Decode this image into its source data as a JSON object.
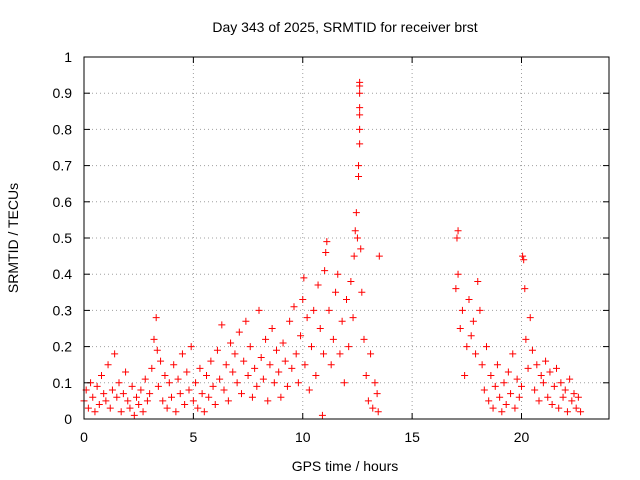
{
  "chart_data": {
    "type": "scatter",
    "title": "Day 343 of 2025, SRMTID for receiver brst",
    "xlabel": "GPS time / hours",
    "ylabel": "SRMTID / TECUs",
    "xlim": [
      0,
      24
    ],
    "ylim": [
      0,
      1
    ],
    "xticks": [
      0,
      5,
      10,
      15,
      20
    ],
    "xtick_labels": [
      "0",
      "5",
      "10",
      "15",
      "20"
    ],
    "yticks": [
      0,
      0.1,
      0.2,
      0.3,
      0.4,
      0.5,
      0.6,
      0.7,
      0.8,
      0.9,
      1
    ],
    "ytick_labels": [
      "0",
      "0.1",
      "0.2",
      "0.3",
      "0.4",
      "0.5",
      "0.6",
      "0.7",
      "0.8",
      "0.9",
      "1"
    ],
    "grid": true,
    "marker": "+",
    "color": "#ff0000",
    "series": [
      {
        "name": "SRMTID",
        "points": [
          [
            0.0,
            0.05
          ],
          [
            0.1,
            0.08
          ],
          [
            0.2,
            0.03
          ],
          [
            0.3,
            0.1
          ],
          [
            0.4,
            0.06
          ],
          [
            0.5,
            0.02
          ],
          [
            0.6,
            0.09
          ],
          [
            0.7,
            0.04
          ],
          [
            0.8,
            0.12
          ],
          [
            0.9,
            0.07
          ],
          [
            1.0,
            0.05
          ],
          [
            1.1,
            0.15
          ],
          [
            1.2,
            0.03
          ],
          [
            1.3,
            0.08
          ],
          [
            1.4,
            0.18
          ],
          [
            1.5,
            0.06
          ],
          [
            1.6,
            0.1
          ],
          [
            1.7,
            0.02
          ],
          [
            1.8,
            0.07
          ],
          [
            1.9,
            0.13
          ],
          [
            2.0,
            0.05
          ],
          [
            2.1,
            0.03
          ],
          [
            2.2,
            0.09
          ],
          [
            2.3,
            0.01
          ],
          [
            2.4,
            0.06
          ],
          [
            2.5,
            0.04
          ],
          [
            2.6,
            0.08
          ],
          [
            2.7,
            0.02
          ],
          [
            2.8,
            0.11
          ],
          [
            2.9,
            0.05
          ],
          [
            3.0,
            0.07
          ],
          [
            3.1,
            0.14
          ],
          [
            3.2,
            0.22
          ],
          [
            3.3,
            0.28
          ],
          [
            3.35,
            0.19
          ],
          [
            3.4,
            0.09
          ],
          [
            3.5,
            0.16
          ],
          [
            3.6,
            0.05
          ],
          [
            3.7,
            0.12
          ],
          [
            3.8,
            0.03
          ],
          [
            3.9,
            0.1
          ],
          [
            4.0,
            0.06
          ],
          [
            4.1,
            0.15
          ],
          [
            4.2,
            0.02
          ],
          [
            4.3,
            0.11
          ],
          [
            4.4,
            0.07
          ],
          [
            4.5,
            0.18
          ],
          [
            4.6,
            0.04
          ],
          [
            4.7,
            0.13
          ],
          [
            4.8,
            0.08
          ],
          [
            4.9,
            0.2
          ],
          [
            5.0,
            0.05
          ],
          [
            5.1,
            0.1
          ],
          [
            5.2,
            0.03
          ],
          [
            5.3,
            0.14
          ],
          [
            5.4,
            0.07
          ],
          [
            5.5,
            0.02
          ],
          [
            5.6,
            0.12
          ],
          [
            5.7,
            0.06
          ],
          [
            5.8,
            0.16
          ],
          [
            5.9,
            0.09
          ],
          [
            6.0,
            0.04
          ],
          [
            6.1,
            0.19
          ],
          [
            6.2,
            0.11
          ],
          [
            6.3,
            0.26
          ],
          [
            6.4,
            0.08
          ],
          [
            6.5,
            0.15
          ],
          [
            6.6,
            0.05
          ],
          [
            6.7,
            0.21
          ],
          [
            6.8,
            0.13
          ],
          [
            6.9,
            0.18
          ],
          [
            7.0,
            0.1
          ],
          [
            7.1,
            0.24
          ],
          [
            7.2,
            0.07
          ],
          [
            7.3,
            0.16
          ],
          [
            7.4,
            0.27
          ],
          [
            7.5,
            0.12
          ],
          [
            7.6,
            0.2
          ],
          [
            7.7,
            0.06
          ],
          [
            7.8,
            0.14
          ],
          [
            7.9,
            0.09
          ],
          [
            8.0,
            0.3
          ],
          [
            8.1,
            0.17
          ],
          [
            8.2,
            0.11
          ],
          [
            8.3,
            0.22
          ],
          [
            8.4,
            0.05
          ],
          [
            8.5,
            0.15
          ],
          [
            8.6,
            0.25
          ],
          [
            8.7,
            0.1
          ],
          [
            8.8,
            0.19
          ],
          [
            8.9,
            0.13
          ],
          [
            9.0,
            0.06
          ],
          [
            9.1,
            0.21
          ],
          [
            9.2,
            0.16
          ],
          [
            9.3,
            0.09
          ],
          [
            9.4,
            0.27
          ],
          [
            9.5,
            0.14
          ],
          [
            9.6,
            0.31
          ],
          [
            9.7,
            0.18
          ],
          [
            9.8,
            0.1
          ],
          [
            9.9,
            0.23
          ],
          [
            10.0,
            0.33
          ],
          [
            10.05,
            0.39
          ],
          [
            10.1,
            0.15
          ],
          [
            10.2,
            0.28
          ],
          [
            10.3,
            0.08
          ],
          [
            10.4,
            0.2
          ],
          [
            10.5,
            0.3
          ],
          [
            10.6,
            0.12
          ],
          [
            10.7,
            0.37
          ],
          [
            10.8,
            0.25
          ],
          [
            10.9,
            0.01
          ],
          [
            10.95,
            0.18
          ],
          [
            11.0,
            0.41
          ],
          [
            11.05,
            0.46
          ],
          [
            11.1,
            0.49
          ],
          [
            11.2,
            0.3
          ],
          [
            11.3,
            0.15
          ],
          [
            11.4,
            0.22
          ],
          [
            11.5,
            0.35
          ],
          [
            11.6,
            0.4
          ],
          [
            11.7,
            0.18
          ],
          [
            11.8,
            0.27
          ],
          [
            11.9,
            0.1
          ],
          [
            12.0,
            0.33
          ],
          [
            12.1,
            0.2
          ],
          [
            12.2,
            0.38
          ],
          [
            12.3,
            0.28
          ],
          [
            12.35,
            0.45
          ],
          [
            12.4,
            0.52
          ],
          [
            12.45,
            0.57
          ],
          [
            12.5,
            0.5
          ],
          [
            12.55,
            0.67
          ],
          [
            12.55,
            0.7
          ],
          [
            12.6,
            0.76
          ],
          [
            12.6,
            0.8
          ],
          [
            12.6,
            0.84
          ],
          [
            12.6,
            0.86
          ],
          [
            12.6,
            0.9
          ],
          [
            12.6,
            0.92
          ],
          [
            12.6,
            0.93
          ],
          [
            12.65,
            0.47
          ],
          [
            12.7,
            0.35
          ],
          [
            12.8,
            0.22
          ],
          [
            12.9,
            0.12
          ],
          [
            13.0,
            0.05
          ],
          [
            13.1,
            0.18
          ],
          [
            13.2,
            0.03
          ],
          [
            13.3,
            0.1
          ],
          [
            13.4,
            0.07
          ],
          [
            13.5,
            0.45
          ],
          [
            13.45,
            0.02
          ],
          [
            17.0,
            0.36
          ],
          [
            17.05,
            0.5
          ],
          [
            17.1,
            0.52
          ],
          [
            17.1,
            0.4
          ],
          [
            17.2,
            0.25
          ],
          [
            17.3,
            0.3
          ],
          [
            17.4,
            0.12
          ],
          [
            17.5,
            0.2
          ],
          [
            17.6,
            0.33
          ],
          [
            17.7,
            0.23
          ],
          [
            17.8,
            0.27
          ],
          [
            17.9,
            0.18
          ],
          [
            18.0,
            0.38
          ],
          [
            18.1,
            0.3
          ],
          [
            18.2,
            0.15
          ],
          [
            18.3,
            0.08
          ],
          [
            18.4,
            0.2
          ],
          [
            18.5,
            0.05
          ],
          [
            18.6,
            0.12
          ],
          [
            18.7,
            0.03
          ],
          [
            18.8,
            0.09
          ],
          [
            18.9,
            0.15
          ],
          [
            19.0,
            0.06
          ],
          [
            19.1,
            0.02
          ],
          [
            19.2,
            0.1
          ],
          [
            19.3,
            0.04
          ],
          [
            19.4,
            0.13
          ],
          [
            19.5,
            0.07
          ],
          [
            19.6,
            0.18
          ],
          [
            19.7,
            0.03
          ],
          [
            19.8,
            0.11
          ],
          [
            19.9,
            0.06
          ],
          [
            20.0,
            0.09
          ],
          [
            20.05,
            0.45
          ],
          [
            20.1,
            0.44
          ],
          [
            20.15,
            0.36
          ],
          [
            20.2,
            0.22
          ],
          [
            20.3,
            0.14
          ],
          [
            20.4,
            0.28
          ],
          [
            20.5,
            0.19
          ],
          [
            20.6,
            0.08
          ],
          [
            20.7,
            0.15
          ],
          [
            20.8,
            0.05
          ],
          [
            20.9,
            0.12
          ],
          [
            21.0,
            0.1
          ],
          [
            21.1,
            0.16
          ],
          [
            21.2,
            0.06
          ],
          [
            21.3,
            0.13
          ],
          [
            21.4,
            0.04
          ],
          [
            21.5,
            0.09
          ],
          [
            21.6,
            0.14
          ],
          [
            21.7,
            0.03
          ],
          [
            21.8,
            0.1
          ],
          [
            21.9,
            0.06
          ],
          [
            22.0,
            0.08
          ],
          [
            22.1,
            0.02
          ],
          [
            22.2,
            0.11
          ],
          [
            22.3,
            0.05
          ],
          [
            22.4,
            0.07
          ],
          [
            22.5,
            0.03
          ],
          [
            22.6,
            0.06
          ],
          [
            22.7,
            0.02
          ]
        ]
      }
    ]
  }
}
